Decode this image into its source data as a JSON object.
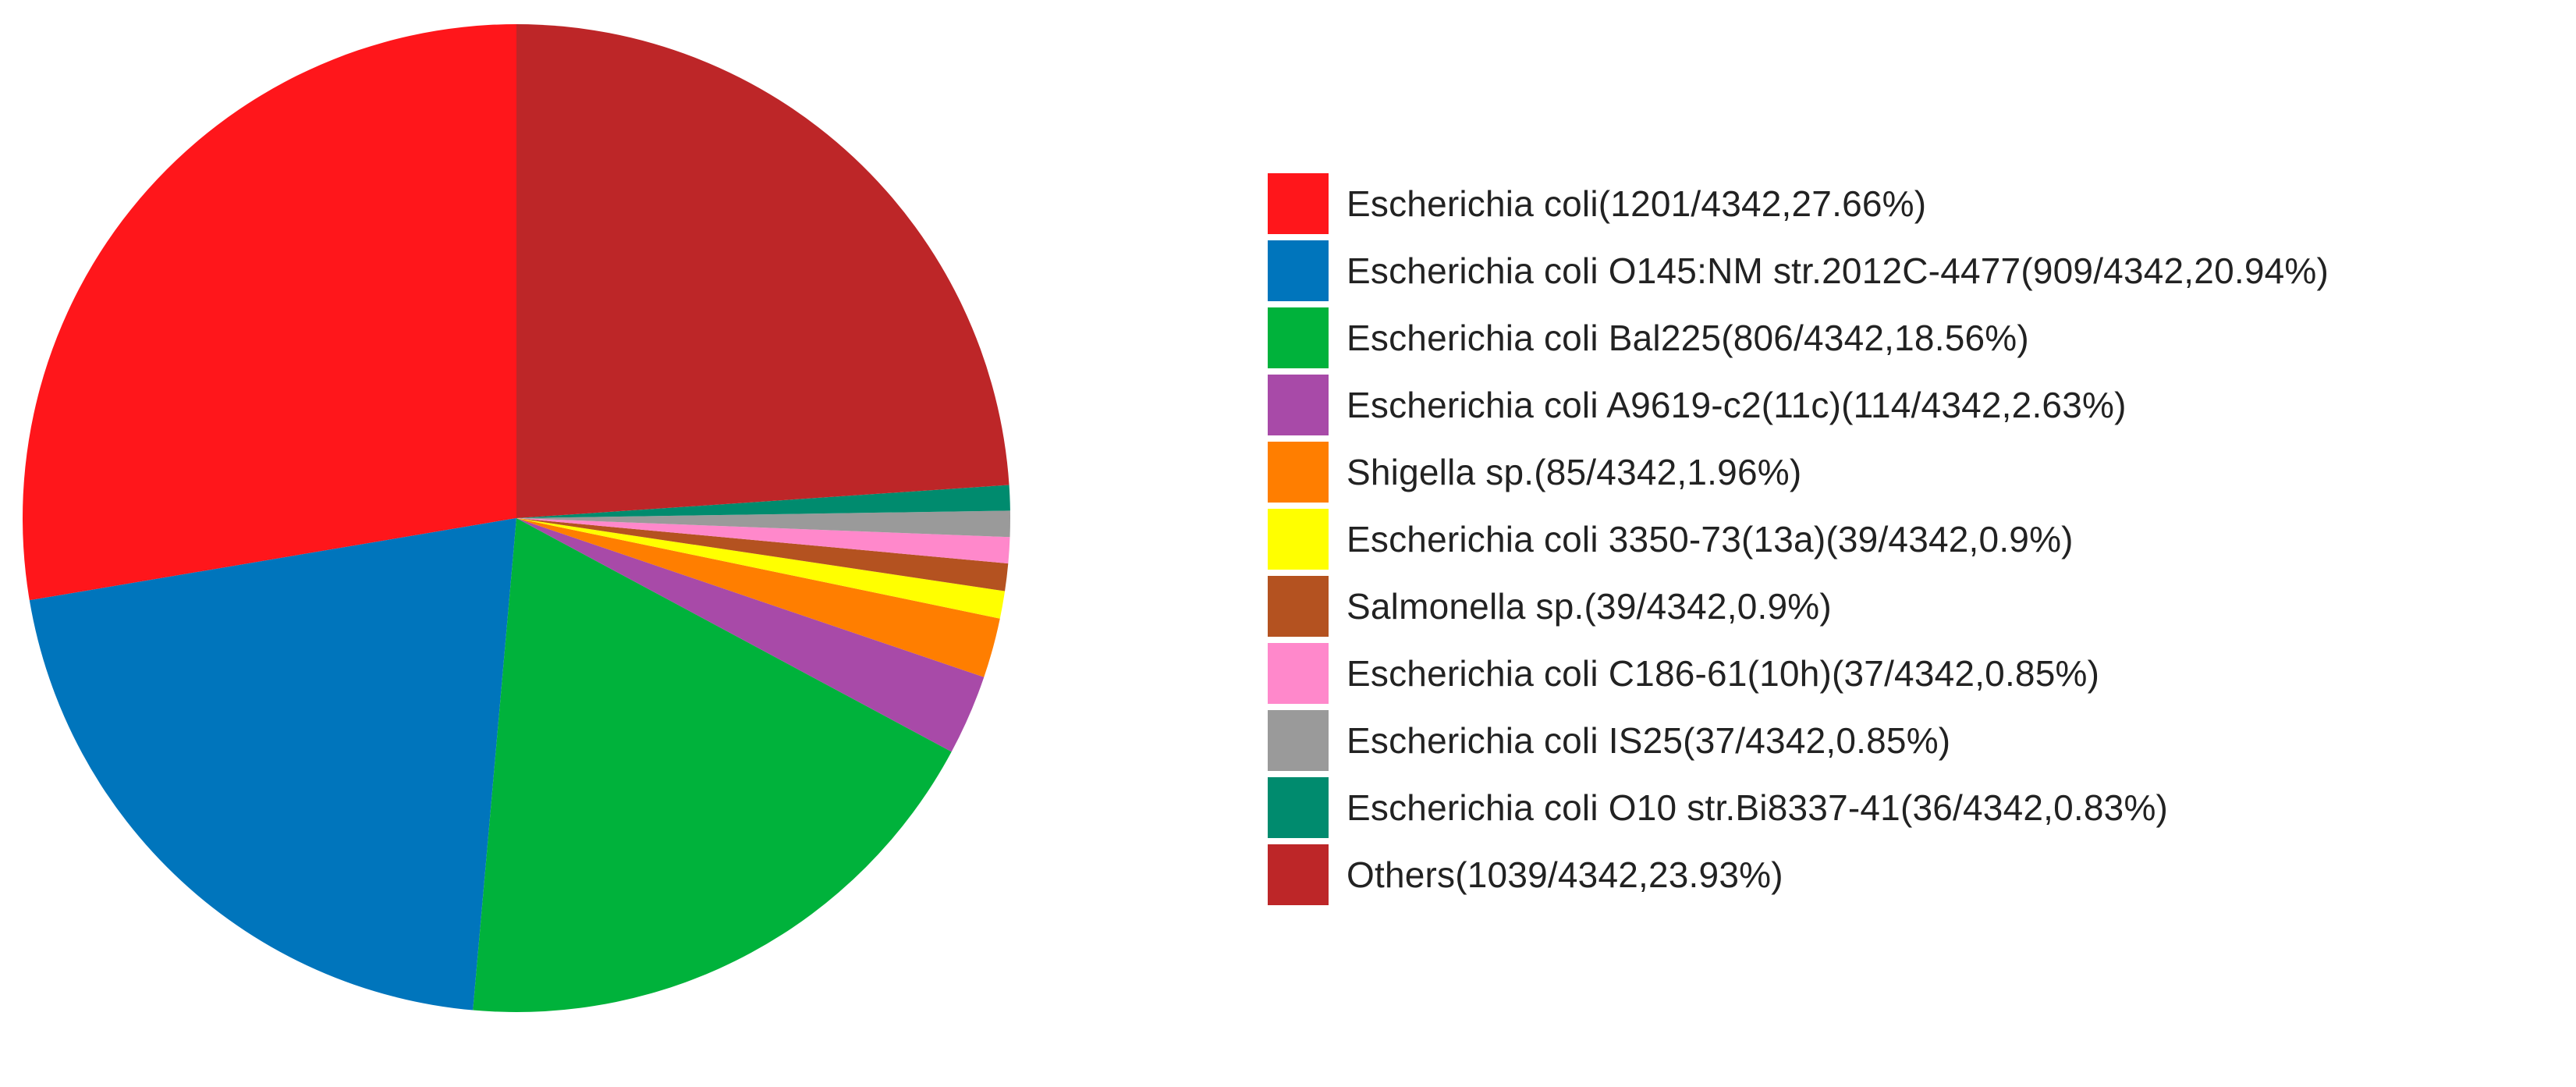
{
  "chart_data": {
    "type": "pie",
    "title": "",
    "total": 4342,
    "slices": [
      {
        "label": "Escherichia coli(1201/4342,27.66%)",
        "count": 1201,
        "percent": 27.66,
        "color": "#FF161B"
      },
      {
        "label": "Escherichia coli O145:NM str.2012C-4477(909/4342,20.94%)",
        "count": 909,
        "percent": 20.94,
        "color": "#0075BC"
      },
      {
        "label": "Escherichia coli Bal225(806/4342,18.56%)",
        "count": 806,
        "percent": 18.56,
        "color": "#00B23B"
      },
      {
        "label": "Escherichia coli A9619-c2(11c)(114/4342,2.63%)",
        "count": 114,
        "percent": 2.63,
        "color": "#A84AA8"
      },
      {
        "label": "Shigella sp.(85/4342,1.96%)",
        "count": 85,
        "percent": 1.96,
        "color": "#FF7E00"
      },
      {
        "label": "Escherichia coli 3350-73(13a)(39/4342,0.9%)",
        "count": 39,
        "percent": 0.9,
        "color": "#FFFF00"
      },
      {
        "label": "Salmonella sp.(39/4342,0.9%)",
        "count": 39,
        "percent": 0.9,
        "color": "#B45220"
      },
      {
        "label": "Escherichia coli C186-61(10h)(37/4342,0.85%)",
        "count": 37,
        "percent": 0.85,
        "color": "#FF88CB"
      },
      {
        "label": "Escherichia coli IS25(37/4342,0.85%)",
        "count": 37,
        "percent": 0.85,
        "color": "#9A9A9A"
      },
      {
        "label": "Escherichia coli O10 str.Bi8337-41(36/4342,0.83%)",
        "count": 36,
        "percent": 0.83,
        "color": "#008B6E"
      },
      {
        "label": "Others(1039/4342,23.93%)",
        "count": 1039,
        "percent": 23.93,
        "color": "#BD2628"
      }
    ],
    "start": "12 o'clock",
    "direction": "counterclockwise",
    "legend_position": "right"
  }
}
